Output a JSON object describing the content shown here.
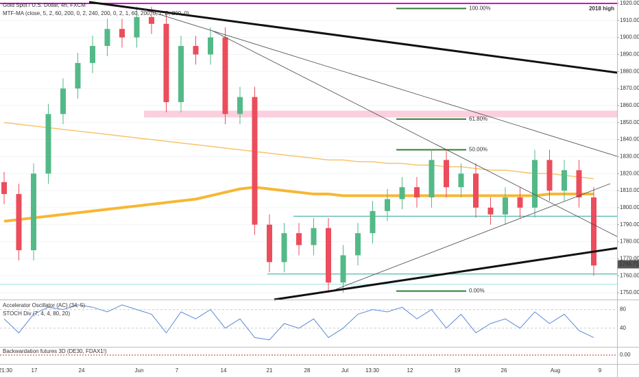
{
  "chart_data": {
    "type": "candlestick",
    "title": "Gold Spot / U.S. Dollar, 4h, FXCM",
    "subtitle": "MTF-MA (close, 5, 2, 60, 200, 0, 2, 240, 200, 0, 2, 1, 60, 200, 0, 1, D, 200, 0)",
    "up_color": "#53b987",
    "down_color": "#eb4d5c",
    "open": [
      1815,
      1808,
      1775,
      1820,
      1855,
      1870,
      1885,
      1895,
      1905,
      1900,
      1912,
      1908,
      1862,
      1895,
      1890,
      1900,
      1855,
      1865,
      1790,
      1768,
      1785,
      1778,
      1788,
      1756,
      1772,
      1785,
      1798,
      1805,
      1812,
      1806,
      1828,
      1812,
      1820,
      1800,
      1796,
      1806,
      1800,
      1828,
      1810,
      1822,
      1806
    ],
    "high": [
      1821,
      1814,
      1826,
      1861,
      1876,
      1891,
      1901,
      1911,
      1911,
      1918,
      1918,
      1914,
      1901,
      1901,
      1906,
      1906,
      1871,
      1871,
      1796,
      1791,
      1791,
      1794,
      1794,
      1778,
      1791,
      1804,
      1811,
      1818,
      1818,
      1834,
      1834,
      1826,
      1826,
      1806,
      1812,
      1812,
      1834,
      1834,
      1828,
      1828,
      1812
    ],
    "low": [
      1802,
      1769,
      1769,
      1814,
      1849,
      1864,
      1879,
      1889,
      1894,
      1894,
      1902,
      1856,
      1856,
      1884,
      1884,
      1849,
      1849,
      1784,
      1762,
      1762,
      1772,
      1772,
      1750,
      1750,
      1766,
      1779,
      1792,
      1799,
      1800,
      1800,
      1806,
      1806,
      1794,
      1790,
      1790,
      1794,
      1794,
      1804,
      1804,
      1800,
      1760
    ],
    "close": [
      1808,
      1775,
      1820,
      1855,
      1870,
      1885,
      1895,
      1905,
      1900,
      1912,
      1908,
      1862,
      1895,
      1890,
      1900,
      1855,
      1865,
      1790,
      1768,
      1785,
      1778,
      1788,
      1756,
      1772,
      1785,
      1798,
      1805,
      1812,
      1806,
      1828,
      1812,
      1820,
      1800,
      1796,
      1806,
      1800,
      1828,
      1810,
      1822,
      1806,
      1766
    ],
    "series": [
      {
        "color": "#f7b733",
        "values": [
          1792,
          1793,
          1794,
          1795,
          1796,
          1797,
          1798,
          1799,
          1800,
          1801,
          1802,
          1803,
          1804,
          1805,
          1807,
          1809,
          1811,
          1812,
          1811,
          1810,
          1809,
          1808,
          1808,
          1807,
          1807,
          1807,
          1807,
          1807,
          1807,
          1807,
          1807,
          1807,
          1807,
          1807,
          1807,
          1807,
          1807,
          1808,
          1808,
          1808,
          1808
        ]
      },
      {
        "color": "#f9c36b",
        "values": [
          1850,
          1849,
          1848,
          1847,
          1846,
          1845,
          1844,
          1843,
          1842,
          1841,
          1840,
          1839,
          1838,
          1837,
          1836,
          1835,
          1834,
          1833,
          1832,
          1831,
          1830,
          1829,
          1828,
          1828,
          1827,
          1827,
          1826,
          1826,
          1825,
          1825,
          1824,
          1824,
          1823,
          1822,
          1822,
          1821,
          1820,
          1820,
          1819,
          1818,
          1817
        ]
      }
    ],
    "ylim": [
      1746,
      1922
    ],
    "yticks": [
      {
        "value": 1750,
        "label": "1750.00"
      },
      {
        "value": 1760,
        "label": "1760.00"
      },
      {
        "value": 1770,
        "label": "1770.00"
      },
      {
        "value": 1780,
        "label": "1780.00"
      },
      {
        "value": 1790,
        "label": "1790.00"
      },
      {
        "value": 1800,
        "label": "1800.00"
      },
      {
        "value": 1810,
        "label": "1810.00"
      },
      {
        "value": 1820,
        "label": "1820.00"
      },
      {
        "value": 1830,
        "label": "1830.00"
      },
      {
        "value": 1840,
        "label": "1840.00"
      },
      {
        "value": 1850,
        "label": "1850.00"
      },
      {
        "value": 1860,
        "label": "1860.00"
      },
      {
        "value": 1870,
        "label": "1870.00"
      },
      {
        "value": 1880,
        "label": "1880.00"
      },
      {
        "value": 1890,
        "label": "1890.00"
      },
      {
        "value": 1900,
        "label": "1900.00"
      },
      {
        "value": 1910,
        "label": "1910.00"
      },
      {
        "value": 1920,
        "label": "1920.00"
      }
    ],
    "grid": true,
    "high_line": {
      "value": 1920,
      "label": "2018 high",
      "color": "#d500d5"
    },
    "zone": [
      1853,
      1857
    ],
    "fib_levels": [
      {
        "value": 1917,
        "label": "100.00%"
      },
      {
        "value": 1852,
        "label": "61.80%"
      },
      {
        "value": 1834,
        "label": "50.00%"
      },
      {
        "value": 1751,
        "label": "0.00%"
      }
    ],
    "support_lines": [
      1795,
      1761,
      1755
    ],
    "last_price": {
      "value": 1766.71,
      "label": "1766.71"
    },
    "x_labels": [
      "21:30",
      "17",
      "24",
      "Jun",
      "7",
      "14",
      "21",
      "28",
      "Jul",
      "13:30",
      "12",
      "19",
      "26",
      "Aug",
      "9"
    ],
    "oscillator": {
      "labels": [
        "Accelerator Oscillator (AC) (34, 5)",
        "STOCH Div (7, 4, 4, 80, 20)"
      ],
      "values": [
        60,
        30,
        70,
        85,
        80,
        90,
        85,
        75,
        90,
        80,
        70,
        30,
        75,
        60,
        80,
        40,
        60,
        20,
        15,
        50,
        40,
        60,
        20,
        40,
        70,
        80,
        75,
        85,
        60,
        80,
        40,
        70,
        30,
        50,
        60,
        40,
        75,
        50,
        70,
        35,
        20
      ],
      "ylim": [
        0,
        100
      ],
      "yticks": [
        80,
        40
      ]
    },
    "backwardation": {
      "label": "Backwardation futures 3D (DE30, FDAX1!)",
      "ylim": [
        -1,
        1
      ],
      "yticks": [
        {
          "value": 0,
          "label": "0.00"
        }
      ]
    }
  }
}
